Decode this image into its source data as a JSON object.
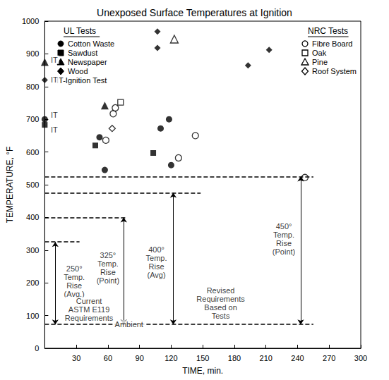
{
  "chart_data": {
    "type": "scatter",
    "title": "Unexposed Surface Temperatures at Ignition",
    "xlabel": "TIME, min.",
    "ylabel": "TEMPERATURE, °F",
    "xlim": [
      0,
      300
    ],
    "xticks": [
      30,
      60,
      90,
      120,
      150,
      180,
      210,
      240,
      270,
      300
    ],
    "ylim": [
      0,
      1000
    ],
    "yticks": [
      0,
      100,
      200,
      300,
      400,
      500,
      600,
      700,
      800,
      900,
      1000
    ],
    "grid": false,
    "legend_note": "IT-Ignition Test",
    "series": [
      {
        "name": "Cotton Waste",
        "group": "UL Tests",
        "color": "#000000",
        "marker": "filled_circle",
        "x": [
          0,
          52,
          57,
          110,
          118,
          120
        ],
        "values": [
          700,
          645,
          545,
          672,
          700,
          560
        ]
      },
      {
        "name": "Sawdust",
        "group": "UL Tests",
        "color": "#000000",
        "marker": "filled_square",
        "x": [
          0,
          48,
          103
        ],
        "values": [
          683,
          620,
          597
        ]
      },
      {
        "name": "Newspaper",
        "group": "UL Tests",
        "color": "#000000",
        "marker": "filled_triangle",
        "x": [
          0,
          57
        ],
        "values": [
          875,
          742
        ]
      },
      {
        "name": "Wood",
        "group": "UL Tests",
        "color": "#000000",
        "marker": "filled_diamond",
        "x": [
          0,
          107,
          107,
          193,
          213
        ],
        "values": [
          820,
          968,
          918,
          865,
          912
        ]
      },
      {
        "name": "Fibre Board",
        "group": "NRC Tests",
        "color": "#000000",
        "marker": "open_circle",
        "x": [
          58,
          65,
          67,
          127,
          143,
          247
        ],
        "values": [
          636,
          717,
          735,
          582,
          650,
          522
        ]
      },
      {
        "name": "Oak",
        "group": "NRC Tests",
        "color": "#000000",
        "marker": "open_square",
        "x": [
          72
        ],
        "values": [
          752
        ]
      },
      {
        "name": "Pine",
        "group": "NRC Tests",
        "color": "#000000",
        "marker": "open_triangle",
        "x": [
          123
        ],
        "values": [
          945
        ]
      },
      {
        "name": "Roof System",
        "group": "NRC Tests",
        "color": "#000000",
        "marker": "open_diamond",
        "x": [
          64
        ],
        "values": [
          672
        ]
      }
    ],
    "reference_lines": [
      {
        "y": 73,
        "x": [
          0,
          255
        ]
      },
      {
        "y": 325,
        "x": [
          0,
          33
        ]
      },
      {
        "y": 400,
        "x": [
          0,
          77
        ]
      },
      {
        "y": 475,
        "x": [
          0,
          148
        ]
      },
      {
        "y": 525,
        "x": [
          0,
          255
        ]
      }
    ],
    "arrows": [
      {
        "x": 10,
        "from": 73,
        "to": 325
      },
      {
        "x": 75,
        "from": 73,
        "to": 400
      },
      {
        "x": 122,
        "from": 73,
        "to": 475
      },
      {
        "x": 243,
        "from": 73,
        "to": 525
      }
    ],
    "annotations": [
      {
        "text": "IT",
        "x": 9,
        "y": 882
      },
      {
        "text": "IT",
        "x": 9,
        "y": 822
      },
      {
        "text": "IT",
        "x": 9,
        "y": 714
      },
      {
        "text": "IT",
        "x": 9,
        "y": 668
      },
      {
        "text": "250°\nTemp.\nRise\n(Avg.)",
        "x": 28,
        "y": 205
      },
      {
        "text": "Current\nASTM E119\nRequirements",
        "x": 42,
        "y": 118
      },
      {
        "text": "325°\nTemp.\nRise\n(Point)",
        "x": 60,
        "y": 245
      },
      {
        "text": "400°\nTemp.\nRise\n(Avg)",
        "x": 106,
        "y": 262
      },
      {
        "text": "Revised\nRequirements\nBased on\nTests",
        "x": 167,
        "y": 138
      },
      {
        "text": "450°\nTemp.\nRise\n(Point)",
        "x": 227,
        "y": 335
      },
      {
        "text": "Ambient",
        "x": 80,
        "y": 73
      }
    ]
  }
}
